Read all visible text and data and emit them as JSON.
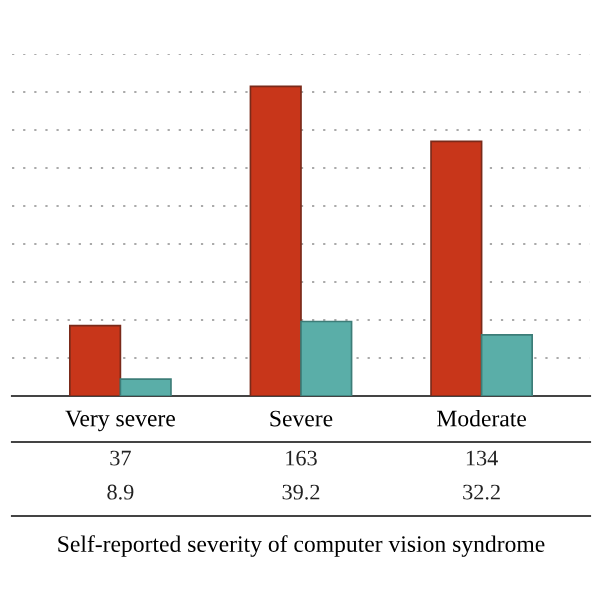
{
  "chart_data": {
    "type": "bar",
    "xlabel": "Self-reported severity of computer vision syndrome",
    "categories": [
      "Very severe",
      "Severe",
      "Moderate"
    ],
    "series": [
      {
        "color": "#c8361a",
        "values": [
          37,
          163,
          134
        ]
      },
      {
        "color": "#5aaea8",
        "values": [
          8.9,
          39.2,
          32.2
        ]
      }
    ],
    "yticks": [
      {
        "value": 0,
        "label": null
      },
      {
        "value": 20,
        "label": null
      },
      {
        "value": 40,
        "label": null
      },
      {
        "value": 60,
        "label": null
      },
      {
        "value": 80,
        "label": null
      },
      {
        "value": 100,
        "label": null
      },
      {
        "value": 120,
        "label": null
      },
      {
        "value": 140,
        "label": null
      },
      {
        "value": 160,
        "label": null
      },
      {
        "value": 180,
        "label": null
      }
    ],
    "grid": "y",
    "tick_labels": "x",
    "data_labels": true
  }
}
